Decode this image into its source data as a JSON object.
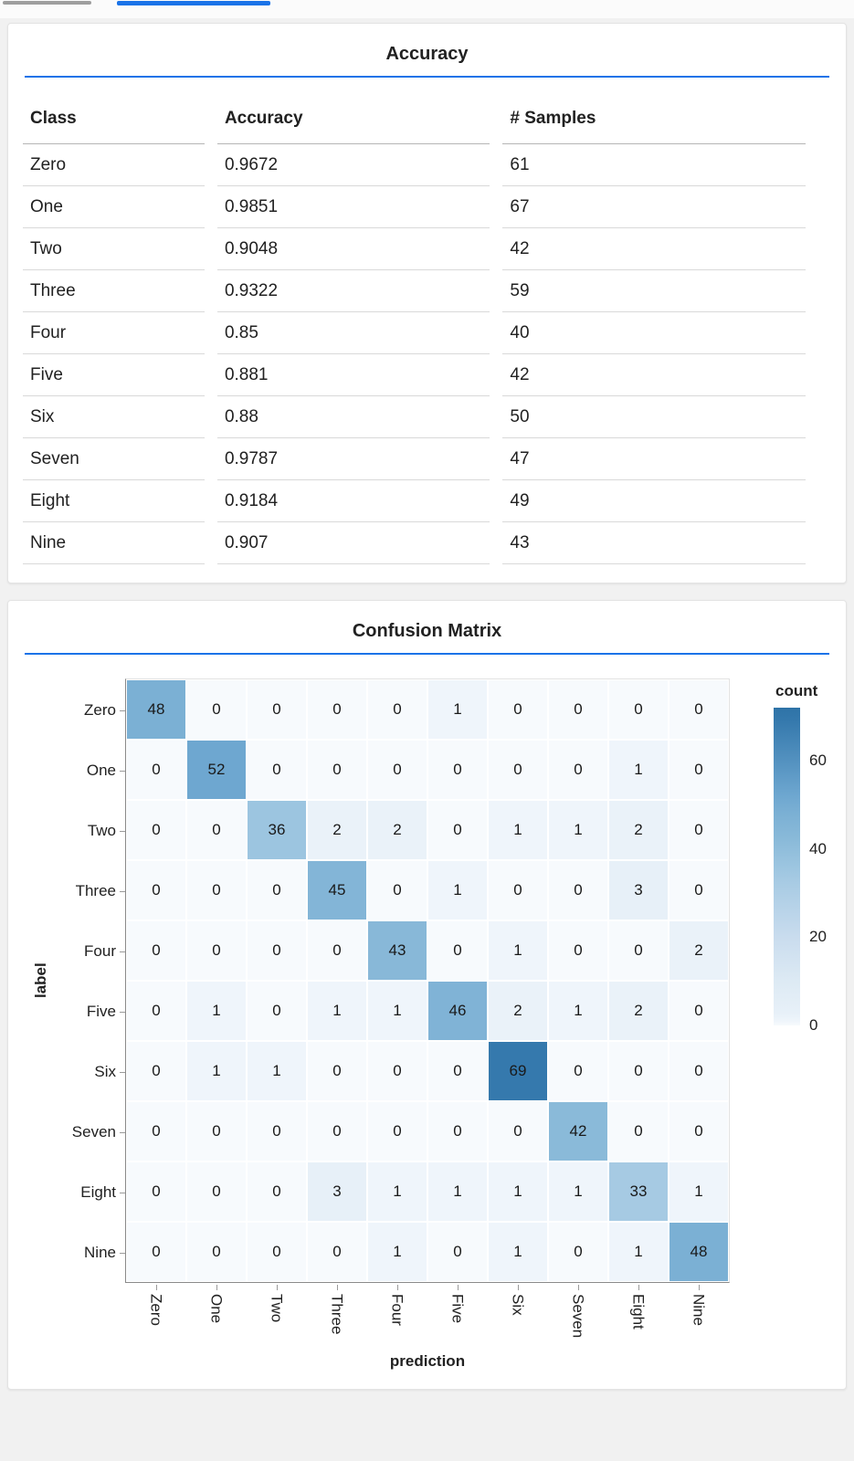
{
  "colors": {
    "accent_blue": "#1a73e8",
    "inactive_tab_gray": "#9e9e9e",
    "axis_line": "#8a8a8a",
    "tick": "#9a9a9a"
  },
  "accuracy_card": {
    "title": "Accuracy",
    "columns": [
      "Class",
      "Accuracy",
      "# Samples"
    ],
    "rows": [
      {
        "class": "Zero",
        "accuracy": "0.9672",
        "samples": "61"
      },
      {
        "class": "One",
        "accuracy": "0.9851",
        "samples": "67"
      },
      {
        "class": "Two",
        "accuracy": "0.9048",
        "samples": "42"
      },
      {
        "class": "Three",
        "accuracy": "0.9322",
        "samples": "59"
      },
      {
        "class": "Four",
        "accuracy": "0.85",
        "samples": "40"
      },
      {
        "class": "Five",
        "accuracy": "0.881",
        "samples": "42"
      },
      {
        "class": "Six",
        "accuracy": "0.88",
        "samples": "50"
      },
      {
        "class": "Seven",
        "accuracy": "0.9787",
        "samples": "47"
      },
      {
        "class": "Eight",
        "accuracy": "0.9184",
        "samples": "49"
      },
      {
        "class": "Nine",
        "accuracy": "0.907",
        "samples": "43"
      }
    ]
  },
  "confusion_card": {
    "title": "Confusion Matrix",
    "xlabel": "prediction",
    "ylabel": "label",
    "legend_title": "count",
    "legend_ticks": [
      60,
      40,
      20,
      0
    ],
    "legend_domain_max": 72,
    "classes": [
      "Zero",
      "One",
      "Two",
      "Three",
      "Four",
      "Five",
      "Six",
      "Seven",
      "Eight",
      "Nine"
    ],
    "matrix": [
      [
        48,
        0,
        0,
        0,
        0,
        1,
        0,
        0,
        0,
        0
      ],
      [
        0,
        52,
        0,
        0,
        0,
        0,
        0,
        0,
        1,
        0
      ],
      [
        0,
        0,
        36,
        2,
        2,
        0,
        1,
        1,
        2,
        0
      ],
      [
        0,
        0,
        0,
        45,
        0,
        1,
        0,
        0,
        3,
        0
      ],
      [
        0,
        0,
        0,
        0,
        43,
        0,
        1,
        0,
        0,
        2
      ],
      [
        0,
        1,
        0,
        1,
        1,
        46,
        2,
        1,
        2,
        0
      ],
      [
        0,
        1,
        1,
        0,
        0,
        0,
        69,
        0,
        0,
        0
      ],
      [
        0,
        0,
        0,
        0,
        0,
        0,
        0,
        42,
        0,
        0
      ],
      [
        0,
        0,
        0,
        3,
        1,
        1,
        1,
        1,
        33,
        1
      ],
      [
        0,
        0,
        0,
        0,
        1,
        0,
        1,
        0,
        1,
        48
      ]
    ],
    "colormap": [
      {
        "v": 0,
        "c": "#f7fafd"
      },
      {
        "v": 1,
        "c": "#eff5fb"
      },
      {
        "v": 2,
        "c": "#eaf2f9"
      },
      {
        "v": 3,
        "c": "#e7f0f8"
      },
      {
        "v": 10,
        "c": "#ddeaf4"
      },
      {
        "v": 20,
        "c": "#c9dcee"
      },
      {
        "v": 33,
        "c": "#a6cae3"
      },
      {
        "v": 36,
        "c": "#9cc5e0"
      },
      {
        "v": 42,
        "c": "#8abad9"
      },
      {
        "v": 48,
        "c": "#7bb0d4"
      },
      {
        "v": 52,
        "c": "#6ea7d0"
      },
      {
        "v": 69,
        "c": "#3579ad"
      },
      {
        "v": 72,
        "c": "#2e73a7"
      }
    ]
  },
  "chart_data": [
    {
      "type": "table",
      "title": "Accuracy",
      "columns": [
        "Class",
        "Accuracy",
        "# Samples"
      ],
      "rows": [
        [
          "Zero",
          0.9672,
          61
        ],
        [
          "One",
          0.9851,
          67
        ],
        [
          "Two",
          0.9048,
          42
        ],
        [
          "Three",
          0.9322,
          59
        ],
        [
          "Four",
          0.85,
          40
        ],
        [
          "Five",
          0.881,
          42
        ],
        [
          "Six",
          0.88,
          50
        ],
        [
          "Seven",
          0.9787,
          47
        ],
        [
          "Eight",
          0.9184,
          49
        ],
        [
          "Nine",
          0.907,
          43
        ]
      ]
    },
    {
      "type": "heatmap",
      "title": "Confusion Matrix",
      "xlabel": "prediction",
      "ylabel": "label",
      "x_categories": [
        "Zero",
        "One",
        "Two",
        "Three",
        "Four",
        "Five",
        "Six",
        "Seven",
        "Eight",
        "Nine"
      ],
      "y_categories": [
        "Zero",
        "One",
        "Two",
        "Three",
        "Four",
        "Five",
        "Six",
        "Seven",
        "Eight",
        "Nine"
      ],
      "legend": {
        "title": "count",
        "ticks": [
          60,
          40,
          20,
          0
        ],
        "position": "right",
        "scheme": "blues"
      },
      "values": [
        [
          48,
          0,
          0,
          0,
          0,
          1,
          0,
          0,
          0,
          0
        ],
        [
          0,
          52,
          0,
          0,
          0,
          0,
          0,
          0,
          1,
          0
        ],
        [
          0,
          0,
          36,
          2,
          2,
          0,
          1,
          1,
          2,
          0
        ],
        [
          0,
          0,
          0,
          45,
          0,
          1,
          0,
          0,
          3,
          0
        ],
        [
          0,
          0,
          0,
          0,
          43,
          0,
          1,
          0,
          0,
          2
        ],
        [
          0,
          1,
          0,
          1,
          1,
          46,
          2,
          1,
          2,
          0
        ],
        [
          0,
          1,
          1,
          0,
          0,
          0,
          69,
          0,
          0,
          0
        ],
        [
          0,
          0,
          0,
          0,
          0,
          0,
          0,
          42,
          0,
          0
        ],
        [
          0,
          0,
          0,
          3,
          1,
          1,
          1,
          1,
          33,
          1
        ],
        [
          0,
          0,
          0,
          0,
          1,
          0,
          1,
          0,
          1,
          48
        ]
      ]
    }
  ]
}
